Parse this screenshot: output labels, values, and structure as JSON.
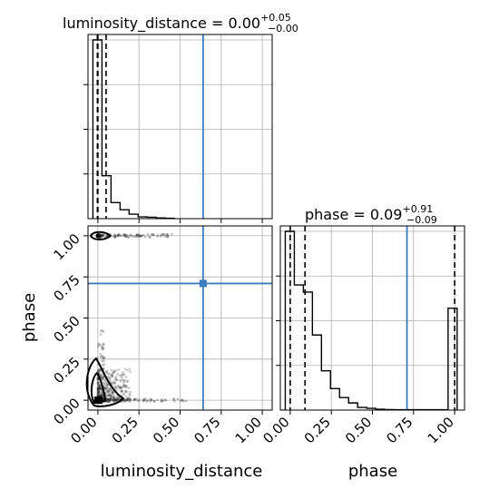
{
  "chart_data": {
    "type": "corner",
    "parameters": [
      "luminosity_distance",
      "phase"
    ],
    "titles": {
      "luminosity_distance": {
        "prefix": "luminosity_distance = 0.00",
        "plus": "+0.05",
        "minus": "−0.00"
      },
      "phase": {
        "prefix": "phase = 0.09",
        "plus": "+0.91",
        "minus": "−0.09"
      }
    },
    "axis_labels": {
      "x_left": "luminosity_distance",
      "x_right": "phase",
      "y_left": "phase"
    },
    "ticks": {
      "luminosity_distance": [
        "0.00",
        "0.25",
        "0.50",
        "0.75",
        "1.00"
      ],
      "phase": [
        "0.00",
        "0.25",
        "0.50",
        "0.75",
        "1.00"
      ]
    },
    "xlim": [
      -0.06,
      1.06
    ],
    "ylim": [
      -0.06,
      1.06
    ],
    "grid": true,
    "truth": {
      "luminosity_distance": 0.64,
      "phase": 0.71,
      "color": "#3b7cc0"
    },
    "histograms": {
      "luminosity_distance": {
        "bin_edges": [
          -0.03,
          0.025,
          0.08,
          0.135,
          0.19,
          0.245,
          0.3,
          0.355,
          0.41,
          0.465
        ],
        "counts": [
          1.0,
          0.24,
          0.09,
          0.05,
          0.025,
          0.01,
          0.008,
          0.004,
          0.002
        ],
        "quantiles": [
          -0.003,
          0.0,
          0.05
        ]
      },
      "phase": {
        "bin_edges": [
          -0.03,
          0.025,
          0.08,
          0.135,
          0.19,
          0.245,
          0.3,
          0.355,
          0.41,
          0.465,
          0.52,
          0.575,
          0.63,
          0.685,
          0.74,
          0.795,
          0.85,
          0.905,
          0.96,
          1.015
        ],
        "counts": [
          1.0,
          0.7,
          0.66,
          0.42,
          0.22,
          0.12,
          0.07,
          0.04,
          0.015,
          0.01,
          0.005,
          0.003,
          0.002,
          0.002,
          0.002,
          0.002,
          0.002,
          0.002,
          0.57
        ],
        "quantiles": [
          0.0,
          0.09,
          1.0
        ]
      }
    },
    "scatter_2d": {
      "x": "luminosity_distance",
      "y": "phase",
      "modes": [
        {
          "center": [
            0.0,
            0.0
          ],
          "spread": [
            0.2,
            0.12
          ]
        },
        {
          "center": [
            0.0,
            1.0
          ],
          "spread": [
            0.3,
            0.01
          ]
        }
      ]
    }
  }
}
